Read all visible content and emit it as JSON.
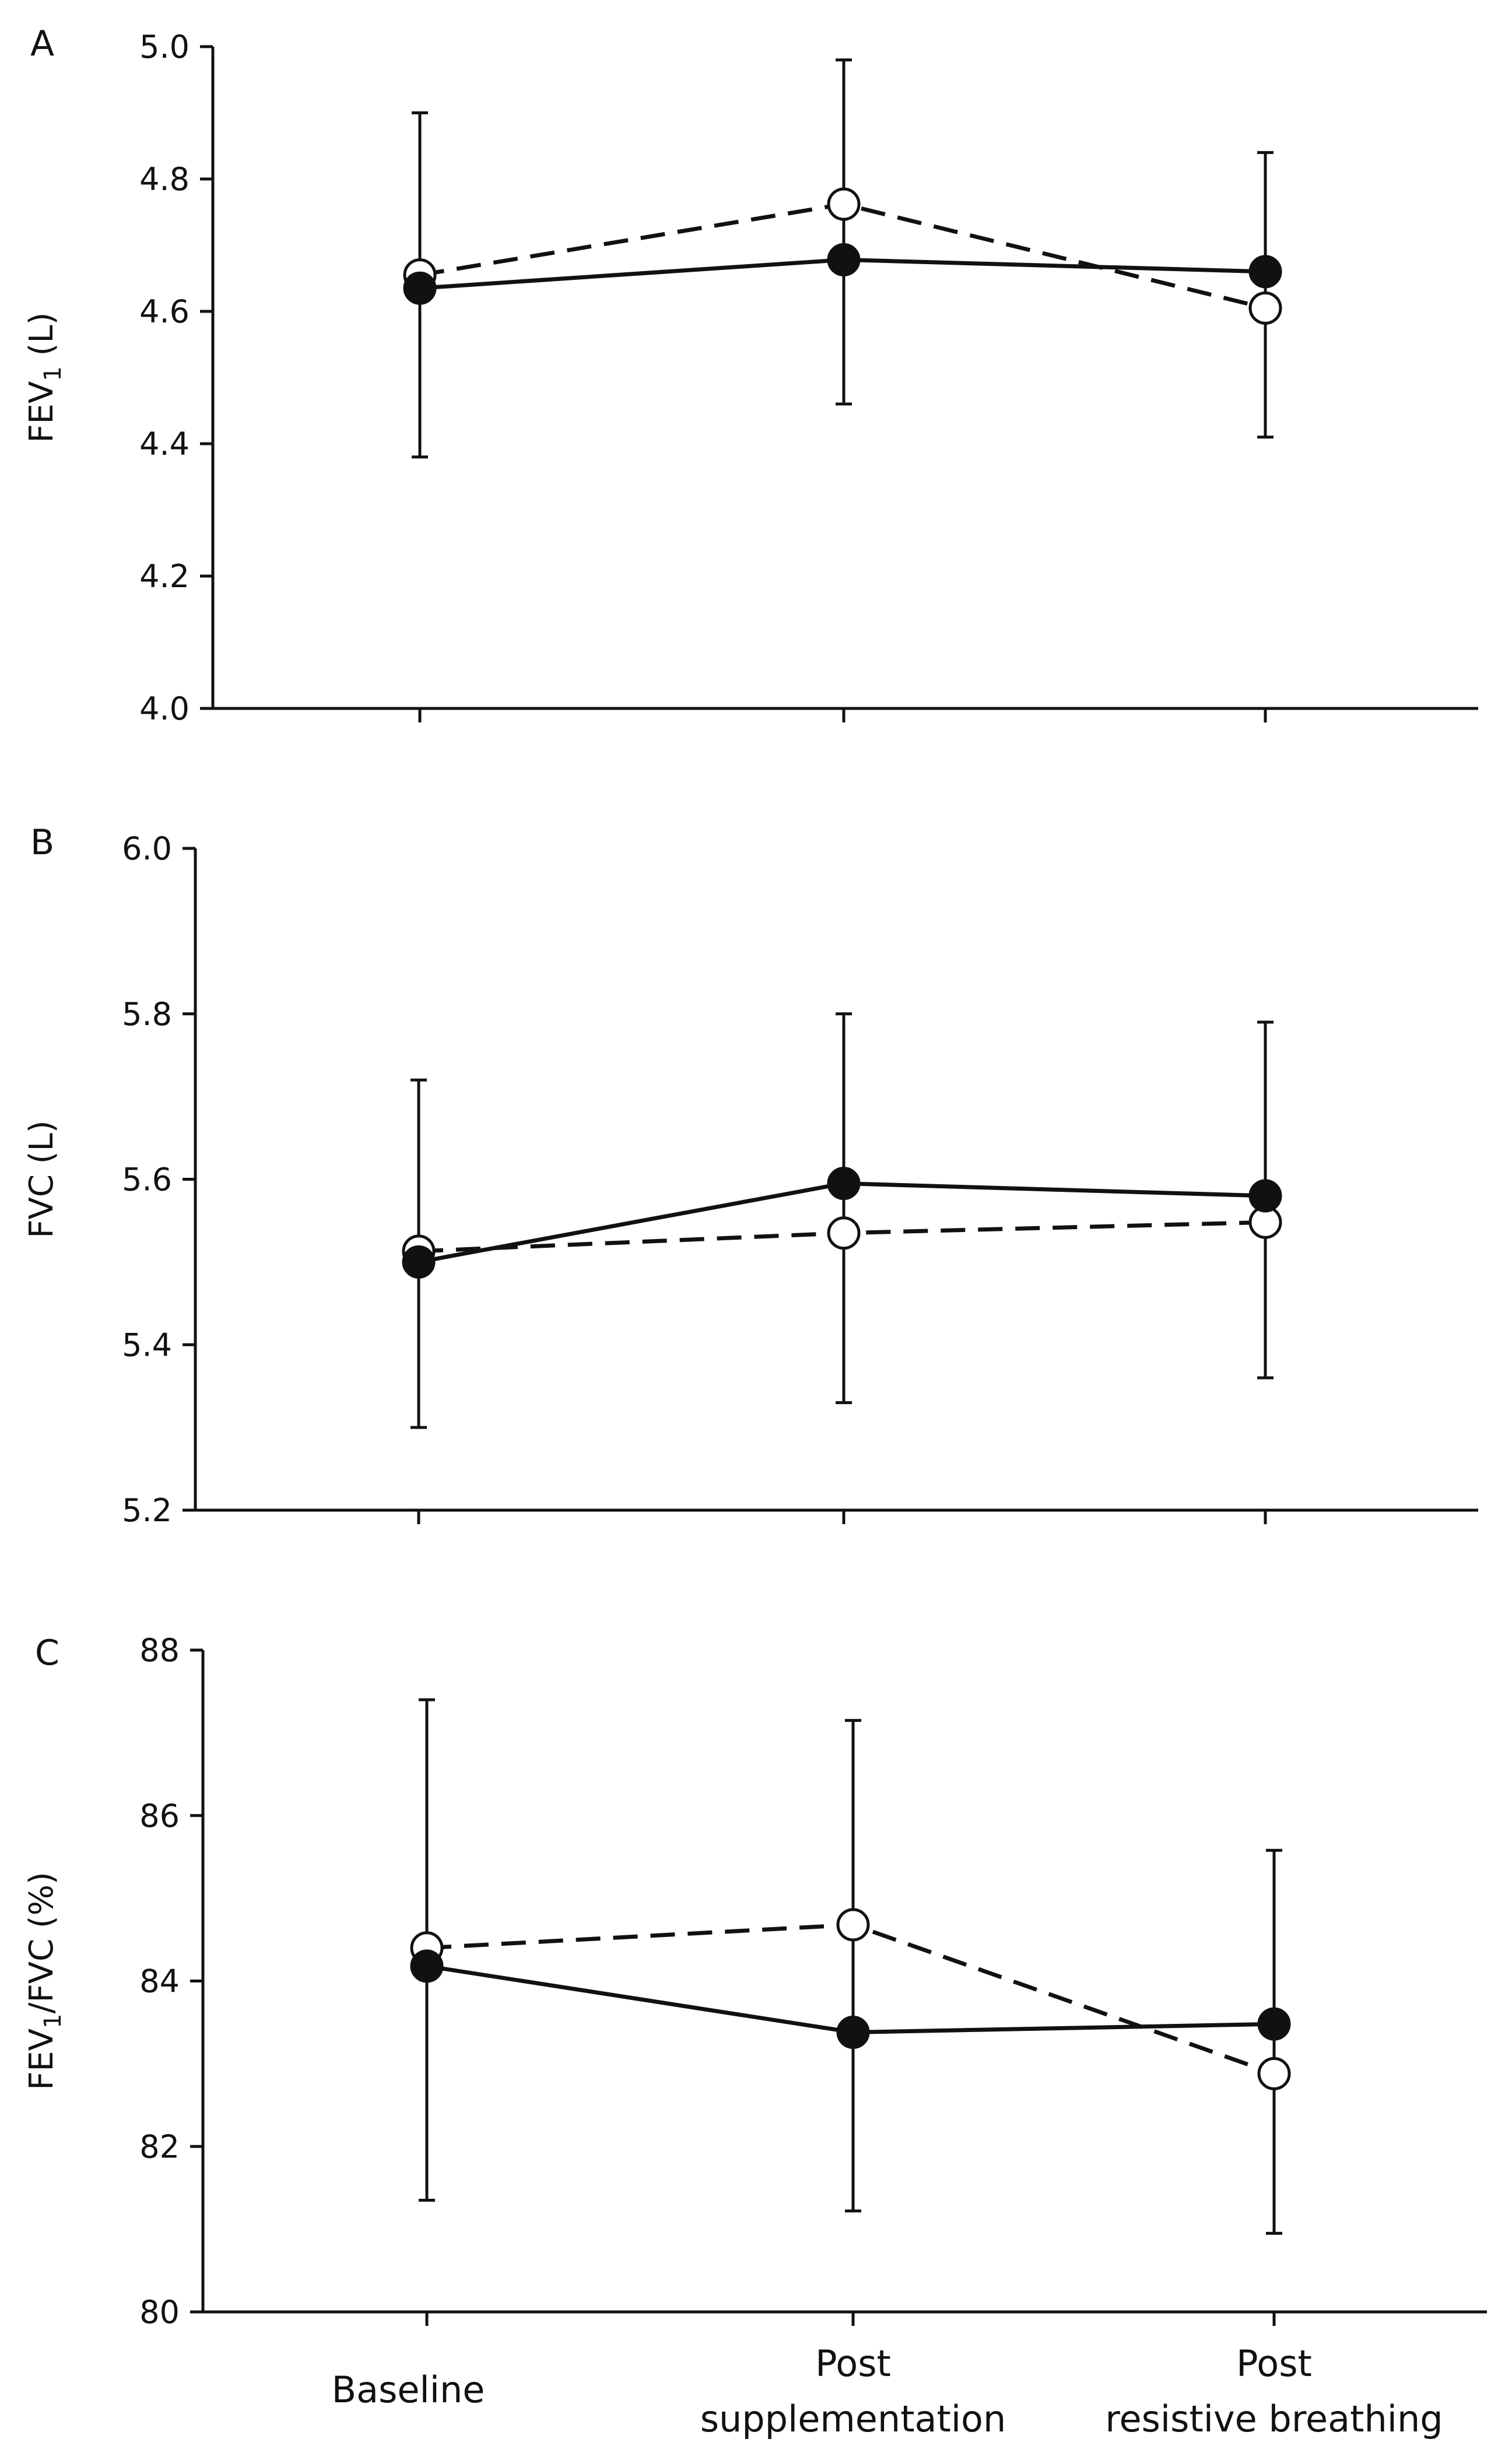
{
  "chart_data": [
    {
      "type": "line",
      "panel_label": "A",
      "ylabel_main": "FEV",
      "ylabel_sub": "1",
      "ylabel_rest": " (L)",
      "ylim": [
        4.0,
        5.0
      ],
      "yticks": [
        "4.0",
        "4.2",
        "4.4",
        "4.6",
        "4.8",
        "5.0"
      ],
      "series": [
        {
          "name": "filled",
          "style": "solid",
          "marker": "filled-circle",
          "values": [
            4.635,
            4.678,
            4.66
          ],
          "err_low": [
            4.38,
            4.46,
            4.41
          ],
          "err_high": [
            4.9,
            4.98,
            4.84
          ]
        },
        {
          "name": "open",
          "style": "dashed",
          "marker": "open-circle",
          "values": [
            4.655,
            4.762,
            4.605
          ],
          "err_low": [
            4.38,
            4.46,
            4.41
          ],
          "err_high": [
            4.9,
            4.98,
            4.84
          ]
        }
      ]
    },
    {
      "type": "line",
      "panel_label": "B",
      "ylabel_main": "FVC (L)",
      "ylabel_sub": "",
      "ylabel_rest": "",
      "ylim": [
        5.2,
        6.0
      ],
      "yticks": [
        "5.2",
        "5.4",
        "5.6",
        "5.8",
        "6.0"
      ],
      "series": [
        {
          "name": "filled",
          "style": "solid",
          "marker": "filled-circle",
          "values": [
            5.5,
            5.595,
            5.58
          ],
          "err_low": [
            5.3,
            5.33,
            5.36
          ],
          "err_high": [
            5.72,
            5.8,
            5.79
          ]
        },
        {
          "name": "open",
          "style": "dashed",
          "marker": "open-circle",
          "values": [
            5.513,
            5.535,
            5.548
          ],
          "err_low": [
            5.3,
            5.33,
            5.36
          ],
          "err_high": [
            5.72,
            5.8,
            5.79
          ]
        }
      ]
    },
    {
      "type": "line",
      "panel_label": "C",
      "ylabel_main": "FEV",
      "ylabel_sub": "1",
      "ylabel_rest": "/FVC (%)",
      "ylim": [
        80,
        88
      ],
      "yticks": [
        "80",
        "82",
        "84",
        "86",
        "88"
      ],
      "series": [
        {
          "name": "filled",
          "style": "solid",
          "marker": "filled-circle",
          "values": [
            84.18,
            83.38,
            83.48
          ],
          "err_low": [
            81.35,
            81.22,
            80.95
          ],
          "err_high": [
            87.4,
            87.15,
            85.58
          ]
        },
        {
          "name": "open",
          "style": "dashed",
          "marker": "open-circle",
          "values": [
            84.4,
            84.68,
            82.88
          ],
          "err_low": [
            81.35,
            81.22,
            80.95
          ],
          "err_high": [
            87.4,
            87.15,
            85.58
          ]
        }
      ]
    }
  ],
  "categories": [
    [
      "Baseline"
    ],
    [
      "Post",
      "supplementation"
    ],
    [
      "Post",
      "resistive breathing"
    ]
  ]
}
